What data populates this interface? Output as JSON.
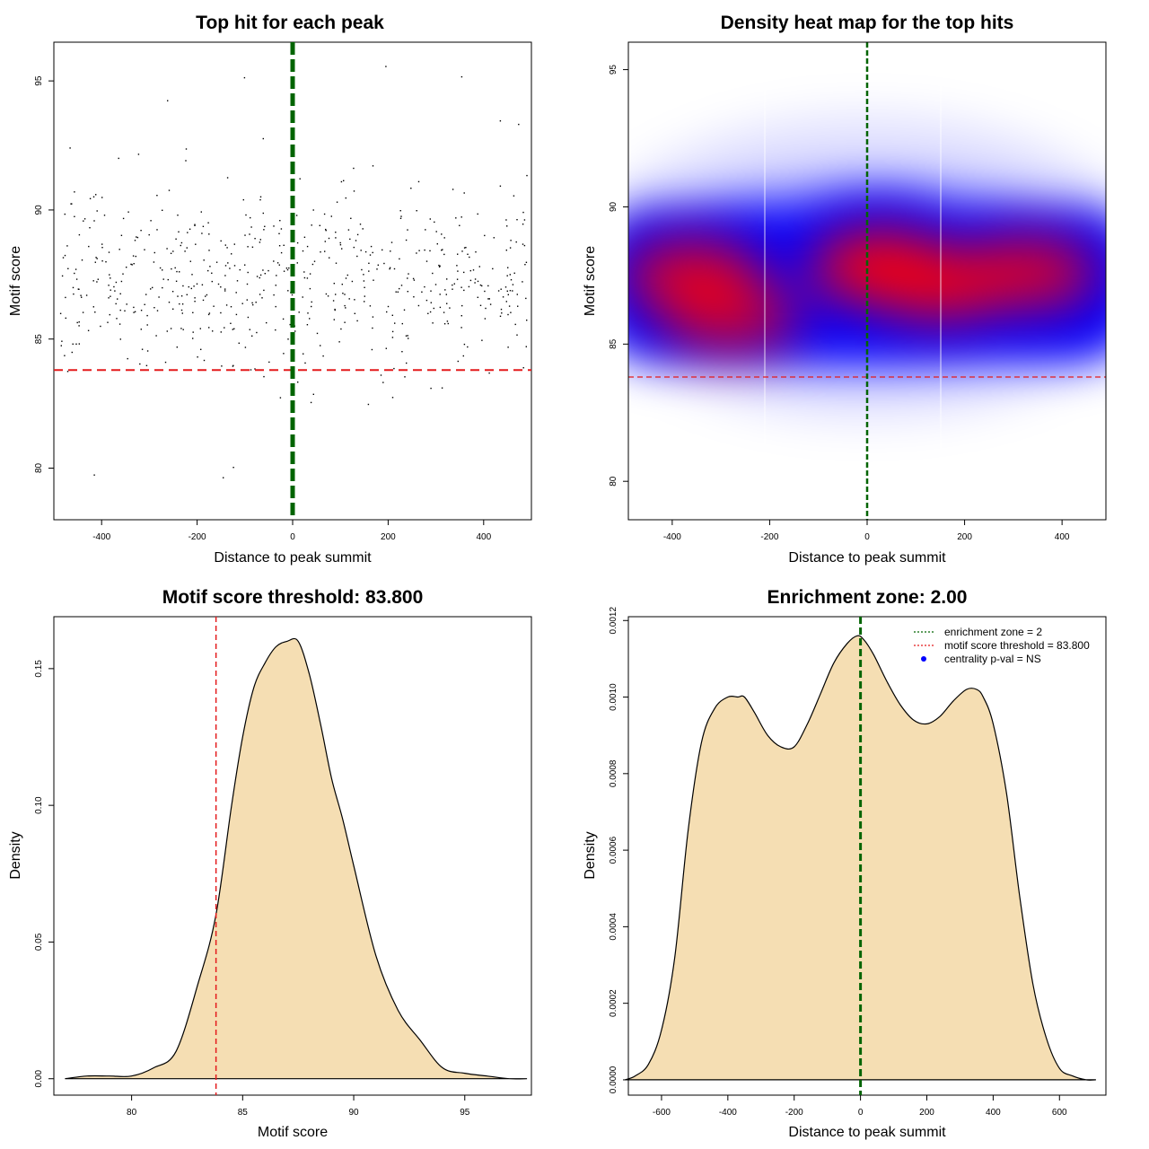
{
  "chart_data": [
    {
      "type": "scatter",
      "title": "Top hit for each peak",
      "xlabel": "Distance to peak summit",
      "ylabel": "Motif score",
      "xlim": [
        -500,
        500
      ],
      "ylim": [
        78,
        96.5
      ],
      "xticks": [
        -400,
        -200,
        0,
        200,
        400
      ],
      "yticks": [
        80,
        85,
        90,
        95
      ],
      "threshold_y": 83.8,
      "center_x": 0,
      "grid": false,
      "n_points": 620,
      "point_color": "#000000",
      "threshold_color": "#e41a1c",
      "center_color": "#006400"
    },
    {
      "type": "heatmap",
      "title": "Density heat map for the top hits",
      "xlabel": "Distance to peak summit",
      "ylabel": "Motif score",
      "xlim": [
        -490,
        490
      ],
      "ylim": [
        78.6,
        96
      ],
      "xticks": [
        -400,
        -200,
        0,
        200,
        400
      ],
      "yticks": [
        80,
        85,
        90,
        95
      ],
      "threshold_y": 83.8,
      "center_x": 0,
      "colors": [
        "#ffffff",
        "#0000ff",
        "#ff0000"
      ],
      "density_peaks": [
        {
          "x": -360,
          "y": 87.5,
          "level": 0.85
        },
        {
          "x": -280,
          "y": 86.0,
          "level": 0.75
        },
        {
          "x": 30,
          "y": 87.8,
          "level": 1.0
        },
        {
          "x": 150,
          "y": 87.2,
          "level": 0.9
        },
        {
          "x": 330,
          "y": 87.6,
          "level": 0.85
        }
      ]
    },
    {
      "type": "area",
      "title": "Motif score threshold: 83.800",
      "xlabel": "Motif score",
      "ylabel": "Density",
      "xlim": [
        76.5,
        98
      ],
      "ylim": [
        -0.006,
        0.169
      ],
      "xticks": [
        80,
        85,
        90,
        95
      ],
      "yticks": [
        0.0,
        0.05,
        0.1,
        0.15
      ],
      "ytick_labels": [
        "0.00",
        "0.05",
        "0.10",
        "0.15"
      ],
      "threshold_x": 83.8,
      "fill_color": "#f5deb3",
      "threshold_color": "#e41a1c",
      "x": [
        77,
        78,
        79,
        80,
        81,
        82,
        83,
        83.8,
        84.5,
        85,
        85.5,
        86,
        86.5,
        87,
        87.5,
        88,
        88.5,
        89,
        89.5,
        90,
        91,
        92,
        93,
        94,
        95,
        96,
        97,
        97.8
      ],
      "y": [
        0.0,
        0.001,
        0.001,
        0.001,
        0.004,
        0.01,
        0.035,
        0.06,
        0.1,
        0.125,
        0.143,
        0.152,
        0.158,
        0.16,
        0.16,
        0.148,
        0.13,
        0.11,
        0.095,
        0.078,
        0.045,
        0.025,
        0.014,
        0.004,
        0.002,
        0.001,
        0.0,
        0.0
      ]
    },
    {
      "type": "area",
      "title": "Enrichment zone: 2.00",
      "xlabel": "Distance to peak summit",
      "ylabel": "Density",
      "xlim": [
        -700,
        740
      ],
      "ylim": [
        -4e-05,
        0.00121
      ],
      "xticks": [
        -600,
        -400,
        -200,
        0,
        200,
        400,
        600
      ],
      "yticks": [
        0.0,
        0.0002,
        0.0004,
        0.0006,
        0.0008,
        0.001,
        0.0012
      ],
      "ytick_labels": [
        "0.0000",
        "0.0002",
        "0.0004",
        "0.0006",
        "0.0008",
        "0.0010",
        "0.0012"
      ],
      "center_x": 0,
      "fill_color": "#f5deb3",
      "center_color": "#006400",
      "x": [
        -710,
        -680,
        -640,
        -600,
        -560,
        -520,
        -480,
        -440,
        -400,
        -370,
        -350,
        -320,
        -280,
        -240,
        -200,
        -160,
        -120,
        -80,
        -40,
        -10,
        10,
        40,
        80,
        120,
        160,
        200,
        240,
        280,
        320,
        350,
        370,
        400,
        440,
        480,
        520,
        560,
        600,
        640,
        680,
        710
      ],
      "y": [
        0.0,
        1e-05,
        4e-05,
        0.00013,
        0.00032,
        0.00065,
        0.00088,
        0.00097,
        0.001,
        0.001,
        0.001,
        0.00096,
        0.0009,
        0.00087,
        0.00087,
        0.00093,
        0.00101,
        0.00109,
        0.00114,
        0.00116,
        0.00115,
        0.00111,
        0.00104,
        0.00098,
        0.00094,
        0.00093,
        0.00095,
        0.00099,
        0.00102,
        0.00102,
        0.001,
        0.00093,
        0.00075,
        0.00048,
        0.00025,
        0.00011,
        3e-05,
        1e-05,
        0.0,
        0.0
      ],
      "legend": {
        "position": "top-right",
        "entries": [
          {
            "label": "enrichment zone = 2",
            "color": "#006400",
            "style": "dotted"
          },
          {
            "label": "motif score threshold = 83.800",
            "color": "#e41a1c",
            "style": "dotted"
          },
          {
            "label": "centrality p-val = NS",
            "color": "#0000ff",
            "style": "point"
          }
        ]
      }
    }
  ]
}
